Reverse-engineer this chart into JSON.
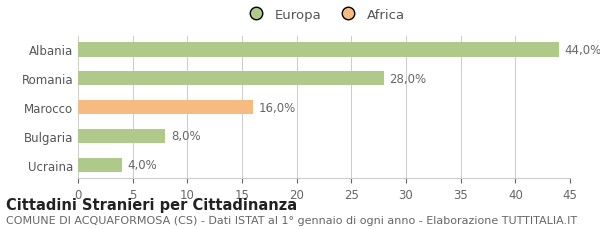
{
  "categories": [
    "Albania",
    "Romania",
    "Marocco",
    "Bulgaria",
    "Ucraina"
  ],
  "values": [
    44.0,
    28.0,
    16.0,
    8.0,
    4.0
  ],
  "labels": [
    "44,0%",
    "28,0%",
    "16,0%",
    "8,0%",
    "4,0%"
  ],
  "bar_colors": [
    "#aec98a",
    "#aec98a",
    "#f5bb80",
    "#aec98a",
    "#aec98a"
  ],
  "legend_items": [
    {
      "label": "Europa",
      "color": "#aec98a"
    },
    {
      "label": "Africa",
      "color": "#f5bb80"
    }
  ],
  "xlim": [
    0,
    45
  ],
  "xticks": [
    0,
    5,
    10,
    15,
    20,
    25,
    30,
    35,
    40,
    45
  ],
  "title": "Cittadini Stranieri per Cittadinanza",
  "subtitle": "COMUNE DI ACQUAFORMOSA (CS) - Dati ISTAT al 1° gennaio di ogni anno - Elaborazione TUTTITALIA.IT",
  "background_color": "#ffffff",
  "grid_color": "#cccccc",
  "bar_height": 0.5,
  "title_fontsize": 10.5,
  "subtitle_fontsize": 8,
  "label_fontsize": 8.5,
  "tick_fontsize": 8.5,
  "legend_fontsize": 9.5
}
